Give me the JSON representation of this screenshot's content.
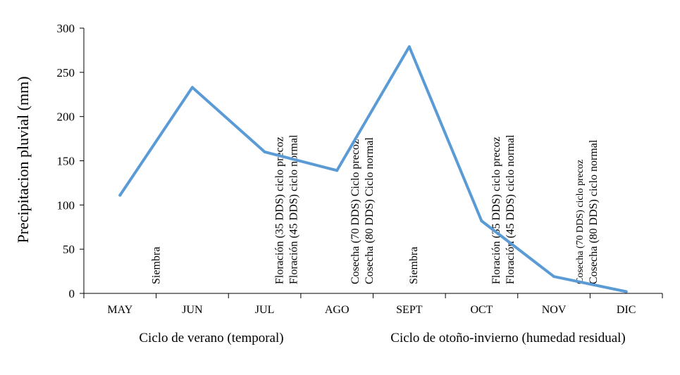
{
  "chart_data": {
    "type": "line",
    "ylabel": "Precipitacion pluvial (mm)",
    "xlabel": "",
    "ylim": [
      0,
      300
    ],
    "yticks": [
      0,
      50,
      100,
      150,
      200,
      250,
      300
    ],
    "categories": [
      "MAY",
      "JUN",
      "JUL",
      "AGO",
      "SEPT",
      "OCT",
      "NOV",
      "DIC"
    ],
    "series": [
      {
        "name": "Precipitacion pluvial",
        "color": "#5b9bd5",
        "values": [
          111,
          233,
          160,
          139,
          279,
          82,
          19,
          2
        ]
      }
    ],
    "grid": false,
    "cycles": [
      {
        "label": "Ciclo de verano (temporal)"
      },
      {
        "label": "Ciclo de otoño-invierno (humedad residual)"
      }
    ],
    "annotations": [
      {
        "lines": [
          "Siembra"
        ],
        "position": 0.5
      },
      {
        "lines": [
          "Floración (35 DDS) ciclo precoz",
          "Floración (45 DDS) ciclo normal"
        ],
        "position": 2.3
      },
      {
        "lines": [
          "Cosecha (70 DDS) Ciclo precoz",
          "Cosecha (80 DDS) Ciclo normal"
        ],
        "position": 3.35
      },
      {
        "lines": [
          "Siembra"
        ],
        "position": 4.06
      },
      {
        "lines": [
          "Floración (35 DDS) ciclo precoz",
          "Floración (45 DDS) ciclo normal"
        ],
        "position": 5.3
      },
      {
        "lines": [
          "Cosecha (70 DDS) ciclo precoz",
          "Cosecha (80 DDS) ciclo normal"
        ],
        "position": 6.45
      }
    ]
  }
}
